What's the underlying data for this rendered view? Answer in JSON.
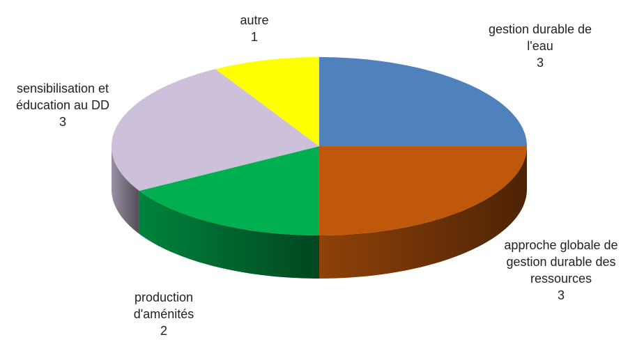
{
  "chart_data": {
    "type": "pie3d",
    "categories": [
      "gestion durable de l'eau",
      "approche globale de gestion durable des ressources",
      "production d'aménités",
      "sensibilisation et éducation au DD",
      "autre"
    ],
    "values": [
      3,
      3,
      2,
      3,
      1
    ],
    "colors": [
      "#4f81bd",
      "#c0580c",
      "#00b050",
      "#ccc0da",
      "#ffff00"
    ]
  }
}
